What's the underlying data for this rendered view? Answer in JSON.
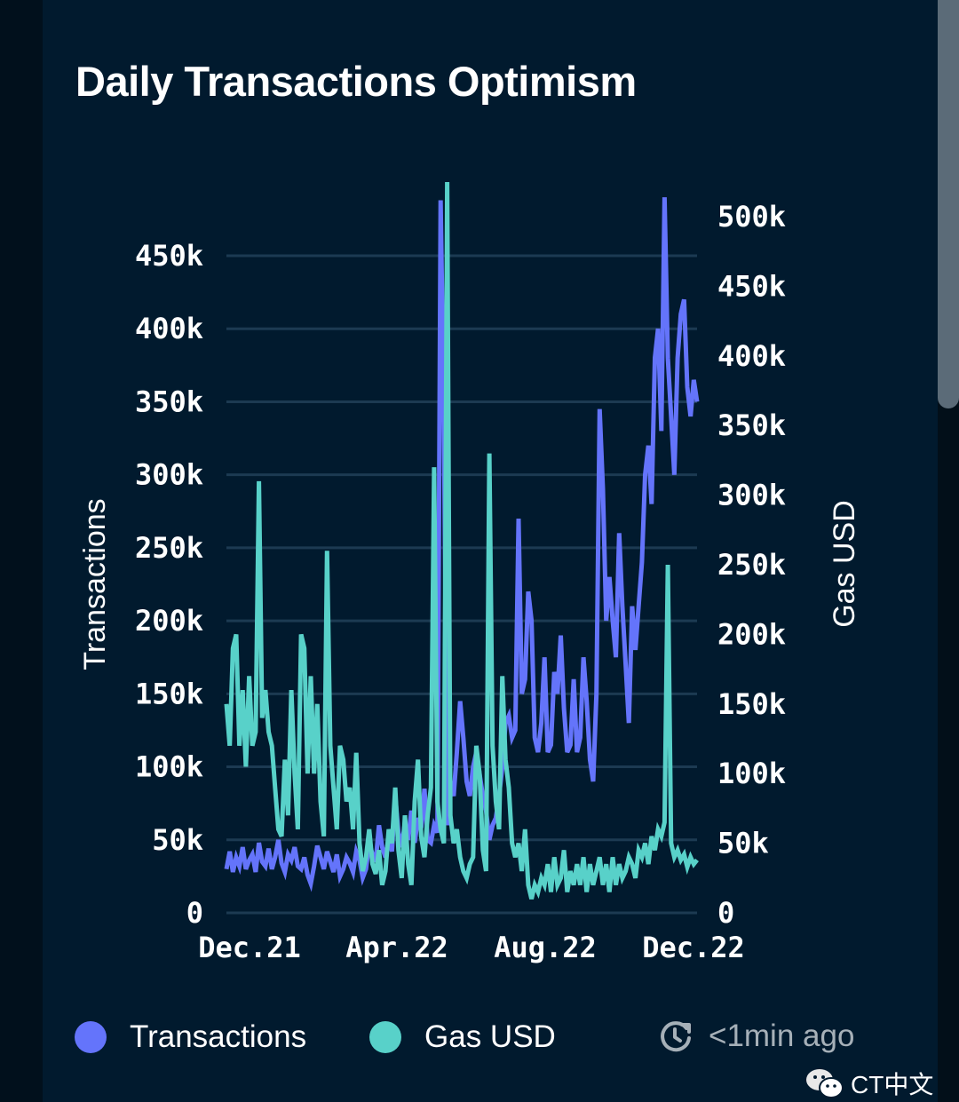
{
  "title": "Daily Transactions Optimism",
  "colors": {
    "transactions": "#6474fb",
    "gas_usd": "#58d1c9",
    "background": "#011a2e",
    "grid": "#1c3a52",
    "muted_text": "#a6b0b8"
  },
  "legend": {
    "items": [
      {
        "label": "Transactions",
        "color": "#6474fb"
      },
      {
        "label": "Gas USD",
        "color": "#58d1c9"
      }
    ]
  },
  "status": {
    "icon": "clock-refresh-icon",
    "text": "<1min ago"
  },
  "watermark": {
    "icon": "wechat-icon",
    "text": "CT中文"
  },
  "chart_data": {
    "type": "line",
    "title": "Daily Transactions Optimism",
    "xlabel": "",
    "ylabel": "Transactions",
    "y2label": "Gas USD",
    "x_ticks": [
      "Dec.21",
      "Apr.22",
      "Aug.22",
      "Dec.22"
    ],
    "y_ticks": [
      "0",
      "50k",
      "100k",
      "150k",
      "200k",
      "250k",
      "300k",
      "350k",
      "400k",
      "450k"
    ],
    "y2_ticks": [
      "0",
      "50k",
      "100k",
      "150k",
      "200k",
      "250k",
      "300k",
      "350k",
      "400k",
      "450k",
      "500k"
    ],
    "ylim": [
      0,
      450000
    ],
    "y2lim": [
      0,
      500000
    ],
    "grid": true,
    "legend_position": "bottom-left",
    "x_range_months": [
      "Nov.21",
      "Dec.22"
    ],
    "series": [
      {
        "name": "Transactions",
        "axis": "left",
        "values": [
          30000,
          42000,
          28000,
          38000,
          32000,
          45000,
          30000,
          36000,
          40000,
          28000,
          48000,
          35000,
          32000,
          44000,
          30000,
          38000,
          50000,
          34000,
          28000,
          40000,
          36000,
          45000,
          32000,
          30000,
          38000,
          26000,
          20000,
          32000,
          46000,
          38000,
          30000,
          42000,
          35000,
          28000,
          40000,
          25000,
          30000,
          38000,
          34000,
          28000,
          42000,
          36000,
          24000,
          30000,
          48000,
          40000,
          35000,
          60000,
          45000,
          38000,
          52000,
          42000,
          80000,
          55000,
          45000,
          62000,
          50000,
          70000,
          48000,
          65000,
          58000,
          85000,
          50000,
          48000,
          60000,
          55000,
          488000,
          340000,
          60000,
          90000,
          80000,
          110000,
          145000,
          120000,
          90000,
          80000,
          100000,
          110000,
          95000,
          80000,
          70000,
          50000,
          60000,
          65000,
          80000,
          100000,
          130000,
          135000,
          120000,
          125000,
          270000,
          150000,
          160000,
          220000,
          200000,
          120000,
          110000,
          130000,
          175000,
          110000,
          115000,
          165000,
          150000,
          190000,
          140000,
          110000,
          115000,
          160000,
          110000,
          120000,
          175000,
          145000,
          105000,
          90000,
          150000,
          345000,
          290000,
          200000,
          230000,
          200000,
          175000,
          260000,
          210000,
          170000,
          130000,
          210000,
          180000,
          210000,
          240000,
          300000,
          320000,
          280000,
          380000,
          400000,
          330000,
          490000,
          380000,
          340000,
          300000,
          380000,
          410000,
          420000,
          360000,
          340000,
          365000,
          350000
        ]
      },
      {
        "name": "Gas USD",
        "axis": "right",
        "values": [
          150000,
          120000,
          190000,
          200000,
          120000,
          160000,
          105000,
          170000,
          120000,
          130000,
          310000,
          140000,
          160000,
          130000,
          120000,
          90000,
          60000,
          55000,
          110000,
          70000,
          160000,
          100000,
          60000,
          200000,
          190000,
          100000,
          170000,
          100000,
          150000,
          80000,
          55000,
          260000,
          120000,
          90000,
          60000,
          120000,
          110000,
          80000,
          90000,
          60000,
          115000,
          50000,
          30000,
          40000,
          60000,
          35000,
          28000,
          45000,
          20000,
          30000,
          60000,
          50000,
          90000,
          45000,
          25000,
          70000,
          35000,
          20000,
          80000,
          110000,
          55000,
          40000,
          70000,
          90000,
          320000,
          80000,
          60000,
          50000,
          525000,
          70000,
          50000,
          60000,
          40000,
          30000,
          25000,
          35000,
          40000,
          120000,
          100000,
          45000,
          30000,
          330000,
          120000,
          80000,
          60000,
          170000,
          110000,
          90000,
          50000,
          40000,
          50000,
          30000,
          60000,
          20000,
          10000,
          20000,
          15000,
          25000,
          20000,
          35000,
          15000,
          40000,
          20000,
          25000,
          45000,
          15000,
          30000,
          20000,
          35000,
          20000,
          40000,
          15000,
          35000,
          20000,
          30000,
          40000,
          20000,
          35000,
          15000,
          40000,
          20000,
          35000,
          25000,
          30000,
          40000,
          35000,
          25000,
          45000,
          40000,
          50000,
          35000,
          55000,
          45000,
          60000,
          55000,
          65000,
          250000,
          50000,
          40000,
          45000,
          38000,
          42000,
          33000,
          40000,
          35000,
          38000
        ]
      }
    ]
  }
}
